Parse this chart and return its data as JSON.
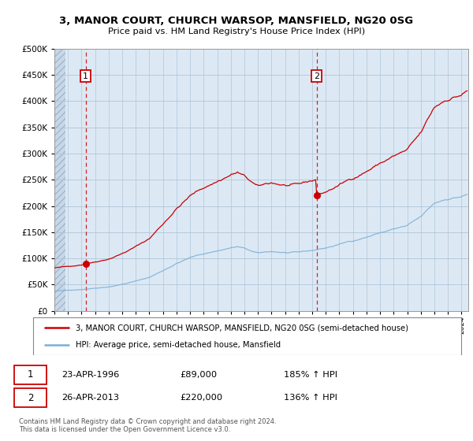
{
  "title": "3, MANOR COURT, CHURCH WARSOP, MANSFIELD, NG20 0SG",
  "subtitle": "Price paid vs. HM Land Registry's House Price Index (HPI)",
  "legend_label_red": "3, MANOR COURT, CHURCH WARSOP, MANSFIELD, NG20 0SG (semi-detached house)",
  "legend_label_blue": "HPI: Average price, semi-detached house, Mansfield",
  "transaction1_date": 1996.31,
  "transaction1_price": 89000,
  "transaction2_date": 2013.32,
  "transaction2_price": 220000,
  "transaction1_text": "23-APR-1996",
  "transaction1_amount": "£89,000",
  "transaction1_hpi": "185% ↑ HPI",
  "transaction2_text": "26-APR-2013",
  "transaction2_amount": "£220,000",
  "transaction2_hpi": "136% ↑ HPI",
  "ymax": 500000,
  "ymin": 0,
  "xmin": 1994.0,
  "xmax": 2024.5,
  "footnote": "Contains HM Land Registry data © Crown copyright and database right 2024.\nThis data is licensed under the Open Government Licence v3.0.",
  "red_color": "#cc0000",
  "blue_color": "#7bafd4",
  "chart_bg": "#dce9f5",
  "hatch_color": "#c8d8e8",
  "grid_color": "#b0c4d8"
}
